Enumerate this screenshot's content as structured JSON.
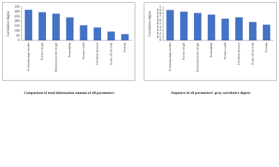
{
  "chart_data": [
    {
      "type": "bar",
      "title": "Comparison of total information amount of all parameters",
      "y_label": "Correlative degree",
      "categories": [
        "Fracturing stage number",
        "Fracture length",
        "Horizontal section length",
        "Permeability",
        "Fracture width",
        "Formation pressure",
        "In-situ oil viscosity",
        "Porosity"
      ],
      "values": [
        320,
        295,
        280,
        240,
        158,
        135,
        92,
        65
      ],
      "color": "#4472c4",
      "ylim": [
        0,
        350
      ],
      "yticks": [
        0,
        50,
        100,
        150,
        200,
        250,
        300,
        350
      ]
    },
    {
      "type": "bar",
      "title": "Sequence of all parameters' gray correlative degree",
      "y_label": "Correlative degree",
      "categories": [
        "Fracturing stage number",
        "Fracture length",
        "Horizontal section length",
        "Permeability",
        "Fracture width",
        "Formation pressure",
        "In-situ oil viscosity",
        "Porosity"
      ],
      "values": [
        0.91,
        0.86,
        0.82,
        0.77,
        0.65,
        0.69,
        0.55,
        0.47
      ],
      "color": "#4472c4",
      "ylim": [
        0,
        1
      ],
      "yticks": [
        0,
        0.1,
        0.2,
        0.3,
        0.4,
        0.5,
        0.6,
        0.7,
        0.8,
        0.9,
        1
      ]
    }
  ]
}
